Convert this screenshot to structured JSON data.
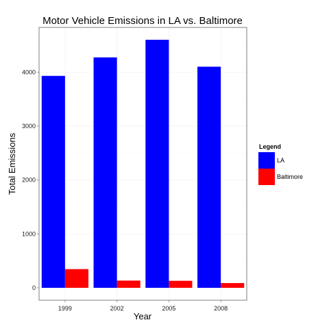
{
  "chart_data": {
    "type": "bar",
    "title": "Motor Vehicle Emissions in LA vs. Baltimore",
    "xlabel": "Year",
    "ylabel": "Total Emissions",
    "categories": [
      "1999",
      "2002",
      "2005",
      "2008"
    ],
    "series": [
      {
        "name": "LA",
        "color": "#0000ff",
        "values": [
          3931,
          4274,
          4601,
          4101
        ]
      },
      {
        "name": "Baltimore",
        "color": "#ff0000",
        "values": [
          347,
          134,
          130,
          88
        ]
      }
    ],
    "ylim": [
      -230,
      4830
    ],
    "yticks": [
      0,
      1000,
      2000,
      3000,
      4000
    ],
    "grid": true,
    "legend": {
      "title": "Legend",
      "placement": "right"
    }
  }
}
